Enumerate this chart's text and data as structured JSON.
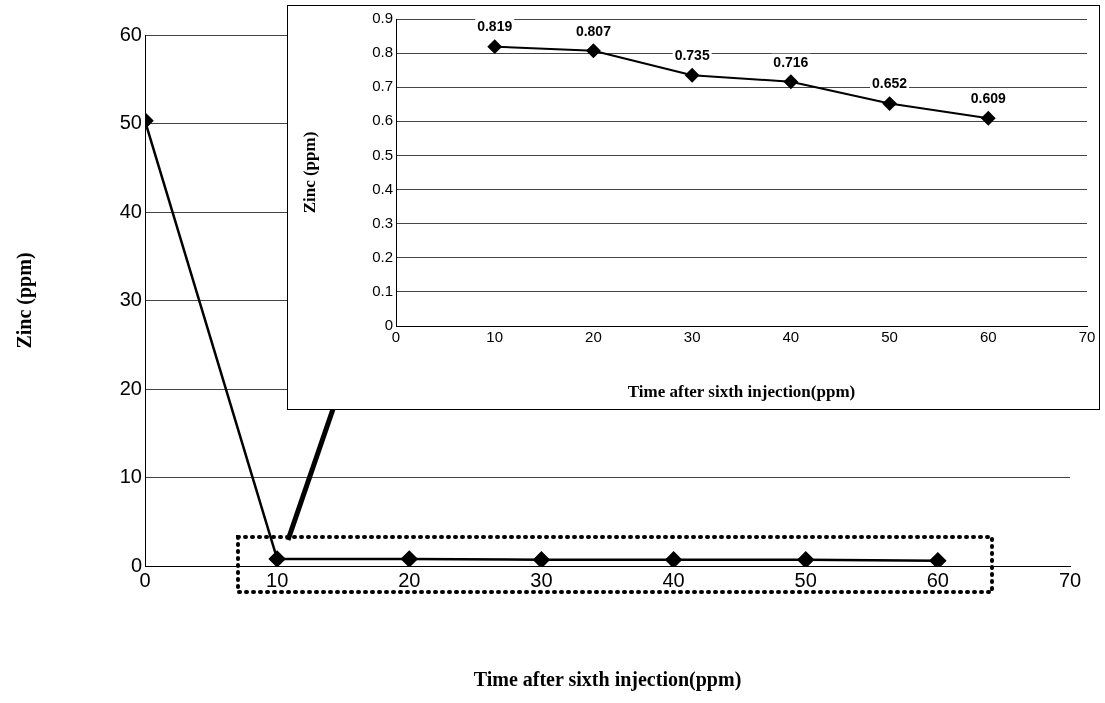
{
  "chart_data": [
    {
      "type": "line",
      "xlabel": "Time after sixth injection(ppm)",
      "ylabel": "Zinc (ppm)",
      "x": [
        0,
        10,
        20,
        30,
        40,
        50,
        60
      ],
      "series": [
        {
          "color": "#000000",
          "values": [
            50.3,
            0.8,
            0.8,
            0.7,
            0.7,
            0.7,
            0.6
          ]
        }
      ],
      "xlim": [
        0,
        70
      ],
      "xticks": [
        0,
        10,
        20,
        30,
        40,
        50,
        60,
        70
      ],
      "ylim": [
        0,
        60
      ],
      "yticks": [
        0,
        10,
        20,
        30,
        40,
        50,
        60
      ],
      "grid": "y",
      "marker": "diamond",
      "line_style": "solid",
      "legend": false
    },
    {
      "type": "line",
      "xlabel": "Time after sixth injection(ppm)",
      "ylabel": "Zinc (ppm)",
      "x": [
        10,
        20,
        30,
        40,
        50,
        60
      ],
      "series": [
        {
          "color": "#000000",
          "values": [
            0.819,
            0.807,
            0.735,
            0.716,
            0.652,
            0.609
          ]
        }
      ],
      "xlim": [
        0,
        70
      ],
      "xticks": [
        0,
        10,
        20,
        30,
        40,
        50,
        60,
        70
      ],
      "ylim": [
        0,
        0.9
      ],
      "yticks": [
        0,
        0.1,
        0.2,
        0.3,
        0.4,
        0.5,
        0.6,
        0.7,
        0.8,
        0.9
      ],
      "grid": "y",
      "marker": "diamond",
      "line_style": "solid",
      "legend": false,
      "data_labels": true
    }
  ]
}
